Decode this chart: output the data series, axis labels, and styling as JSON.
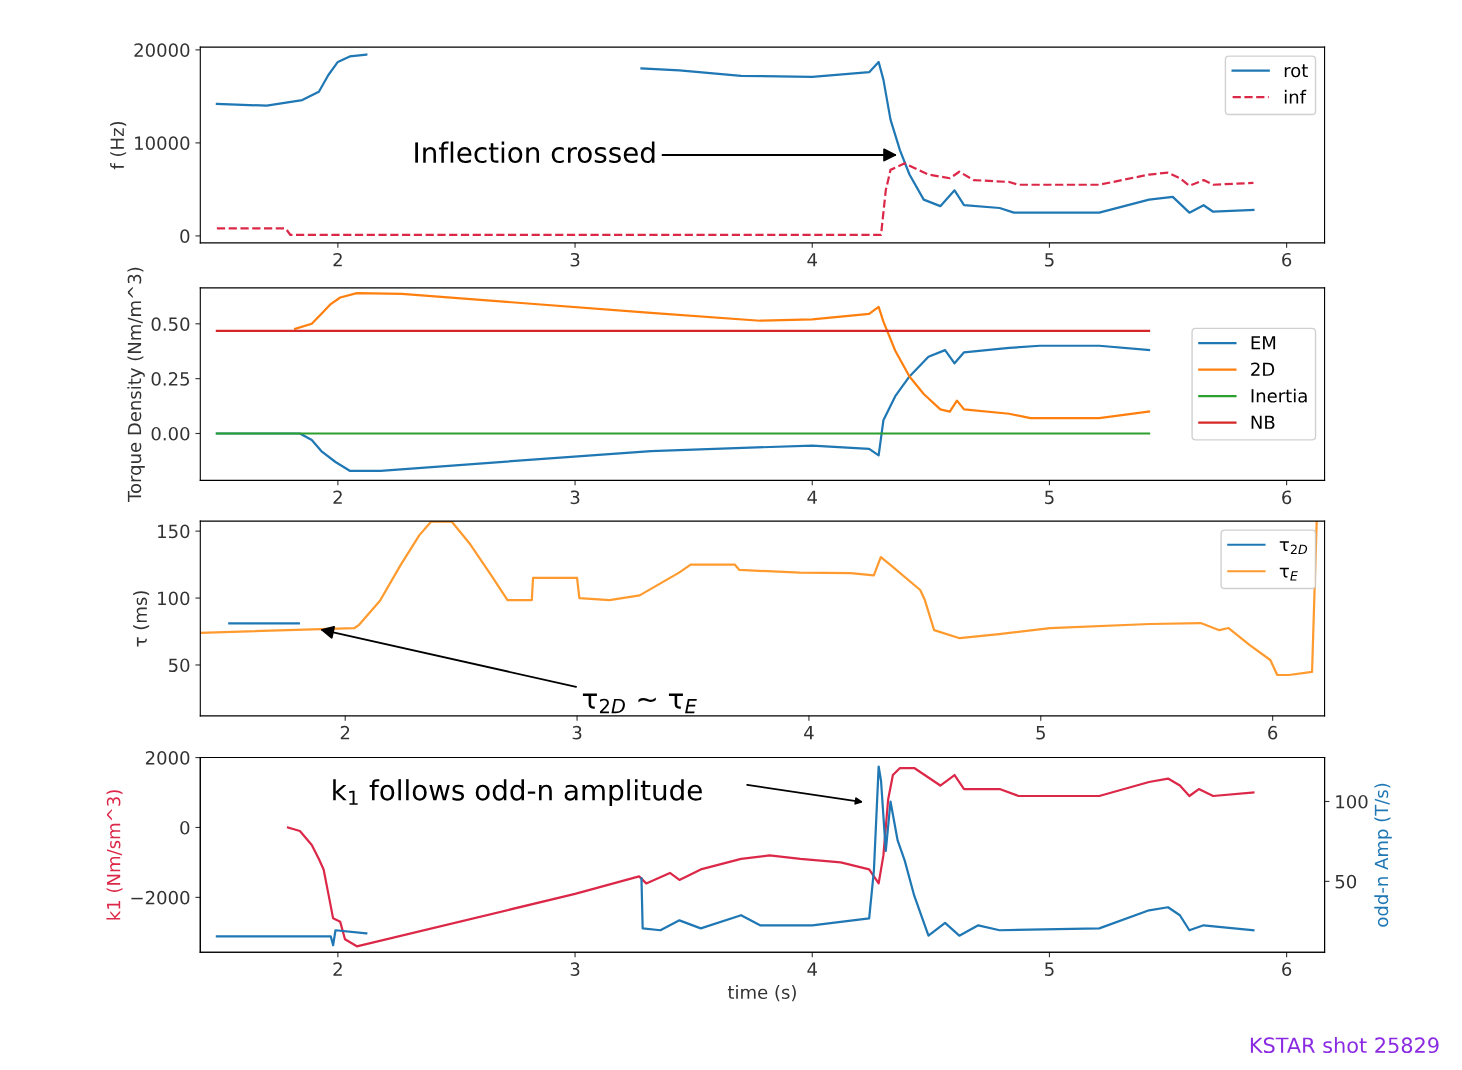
{
  "chart_data": [
    {
      "type": "line",
      "ylabel": "f (Hz)",
      "xlim": [
        1.42,
        6.16
      ],
      "ylim": [
        -750,
        20300
      ],
      "xticks": [
        2,
        3,
        4,
        5,
        6
      ],
      "yticks": [
        0,
        10000,
        20000
      ],
      "legend": "top right",
      "series": [
        {
          "name": "rot",
          "color": "#1f77b4",
          "line_style": "solid",
          "x": [
            1.49,
            1.7,
            1.85,
            1.92,
            1.96,
            2.0,
            2.05,
            2.12,
            2.2,
            3.28,
            3.44,
            3.7,
            4.0,
            4.24,
            4.28,
            4.3,
            4.33,
            4.37,
            4.41,
            4.47,
            4.54,
            4.6,
            4.64,
            4.79,
            4.85,
            5.21,
            5.42,
            5.52,
            5.59,
            5.65,
            5.69,
            5.86
          ],
          "values": [
            14200,
            14000,
            14600,
            15500,
            17300,
            18700,
            19300,
            19500,
            null,
            18000,
            17800,
            17200,
            17100,
            17600,
            18700,
            16800,
            12500,
            9200,
            6600,
            3900,
            3200,
            4900,
            3300,
            3000,
            2500,
            2500,
            3900,
            4200,
            2500,
            3300,
            2600,
            2800
          ]
        },
        {
          "name": "inf",
          "color": "#dc2848",
          "line_style": "dashed",
          "x": [
            1.49,
            1.78,
            1.8,
            4.29,
            4.31,
            4.33,
            4.39,
            4.49,
            4.58,
            4.62,
            4.68,
            4.83,
            4.87,
            5.21,
            5.42,
            5.5,
            5.55,
            5.59,
            5.65,
            5.69,
            5.86
          ],
          "values": [
            800,
            800,
            100,
            100,
            4900,
            7100,
            7800,
            6600,
            6200,
            6900,
            6000,
            5800,
            5500,
            5500,
            6600,
            6800,
            6200,
            5400,
            6000,
            5500,
            5700
          ]
        }
      ],
      "annotations": [
        {
          "text": "Inflection crossed",
          "x": 4.37,
          "y": 8700
        }
      ]
    },
    {
      "type": "line",
      "ylabel": "Torque Density (Nm/m^3)",
      "xlim": [
        1.42,
        6.16
      ],
      "ylim": [
        -0.214,
        0.664
      ],
      "xticks": [
        2,
        3,
        4,
        5,
        6
      ],
      "yticks": [
        {
          "value": 0,
          "label": "0.00"
        },
        {
          "value": 0.25,
          "label": "0.25"
        },
        {
          "value": 0.5,
          "label": "0.50"
        }
      ],
      "legend": "right",
      "series": [
        {
          "name": "EM",
          "color": "#1f77b4",
          "line_style": "solid",
          "x": [
            1.49,
            1.84,
            1.89,
            1.93,
            1.99,
            2.05,
            2.18,
            3.32,
            4.0,
            4.24,
            4.28,
            4.3,
            4.35,
            4.41,
            4.49,
            4.56,
            4.6,
            4.64,
            4.83,
            4.96,
            5.21,
            5.42
          ],
          "values": [
            0,
            0,
            -0.03,
            -0.08,
            -0.13,
            -0.17,
            -0.17,
            -0.08,
            -0.055,
            -0.07,
            -0.1,
            0.06,
            0.17,
            0.26,
            0.35,
            0.38,
            0.32,
            0.37,
            0.39,
            0.4,
            0.4,
            0.38
          ]
        },
        {
          "name": "2D",
          "color": "#ff7f0e",
          "line_style": "solid",
          "x": [
            1.82,
            1.89,
            1.93,
            1.97,
            2.01,
            2.08,
            2.27,
            3.32,
            3.78,
            4.0,
            4.24,
            4.28,
            4.3,
            4.35,
            4.41,
            4.47,
            4.54,
            4.58,
            4.61,
            4.64,
            4.83,
            4.92,
            5.21,
            5.42
          ],
          "values": [
            0.477,
            0.5,
            0.545,
            0.59,
            0.62,
            0.64,
            0.636,
            0.55,
            0.514,
            0.52,
            0.545,
            0.577,
            0.51,
            0.377,
            0.26,
            0.18,
            0.11,
            0.1,
            0.15,
            0.11,
            0.09,
            0.07,
            0.07,
            0.1
          ]
        },
        {
          "name": "Inertia",
          "color": "#2ca02c",
          "line_style": "solid",
          "x": [
            1.49,
            5.42
          ],
          "values": [
            0,
            0
          ]
        },
        {
          "name": "NB",
          "color": "#d62728",
          "line_style": "solid",
          "x": [
            1.49,
            5.42
          ],
          "values": [
            0.468,
            0.468
          ]
        }
      ]
    },
    {
      "type": "line",
      "ylabel": "τ (ms)",
      "xlim": [
        1.375,
        6.224
      ],
      "ylim": [
        12,
        157.5
      ],
      "xticks": [
        2,
        3,
        4,
        5,
        6
      ],
      "yticks": [
        50,
        100,
        150
      ],
      "legend": "top right",
      "series": [
        {
          "name": "τ$_{2D}$",
          "color": "#1f77b4",
          "line_style": "solid",
          "x": [
            1.5,
            1.7,
            1.8
          ],
          "values": [
            81,
            81,
            81
          ]
        },
        {
          "name": "τ$_{E}$",
          "color": "#ff9a2e",
          "line_style": "solid",
          "x": [
            1.375,
            2.04,
            2.06,
            2.15,
            2.24,
            2.32,
            2.37,
            2.46,
            2.54,
            2.63,
            2.7,
            2.805,
            2.81,
            3.0,
            3.01,
            3.14,
            3.27,
            3.44,
            3.49,
            3.68,
            3.7,
            3.96,
            4.18,
            4.28,
            4.31,
            4.35,
            4.48,
            4.5,
            4.54,
            4.65,
            4.82,
            5.04,
            5.47,
            5.69,
            5.77,
            5.81,
            5.9,
            5.99,
            6.02,
            6.07,
            6.17,
            6.19
          ],
          "values": [
            74,
            77.6,
            80,
            98,
            125,
            147,
            157,
            157,
            140,
            117,
            98.5,
            98.5,
            115,
            115,
            100,
            98.5,
            102,
            119,
            125,
            125,
            121,
            119,
            118.7,
            117,
            130.6,
            125,
            106,
            98.5,
            76,
            70,
            73,
            77.6,
            80.6,
            81.3,
            76,
            77.6,
            65,
            53.7,
            42.5,
            42.5,
            44.8,
            157
          ]
        }
      ],
      "annotations": [
        {
          "text": "τ$_{2D}$ ~ τ$_{E}$",
          "x": 1.88,
          "y": 77
        }
      ]
    },
    {
      "type": "line",
      "xlabel": "time (s)",
      "ylabel": "k1 (Nm/sm^3)",
      "y2label": "odd-n Amp (T/s)",
      "xlim": [
        1.42,
        6.16
      ],
      "ylim": [
        -3571,
        2000
      ],
      "xticks": [
        2,
        3,
        4,
        5,
        6
      ],
      "yticks": [
        {
          "value": -2000,
          "label": "−2000"
        },
        0,
        2000
      ],
      "y2lim": [
        5.6,
        127.5
      ],
      "y2ticks": [
        50,
        100
      ],
      "series": [
        {
          "color": "#dc2848",
          "line_style": "solid",
          "x": [
            1.79,
            1.84,
            1.89,
            1.92,
            1.94,
            1.96,
            1.98,
            2.01,
            2.03,
            2.08,
            3.0,
            3.27,
            3.3,
            3.4,
            3.44,
            3.53,
            3.7,
            3.82,
            3.95,
            4.12,
            4.24,
            4.28,
            4.3,
            4.32,
            4.34,
            4.37,
            4.43,
            4.54,
            4.6,
            4.64,
            4.79,
            4.87,
            5.21,
            5.42,
            5.5,
            5.55,
            5.59,
            5.63,
            5.69,
            5.86
          ],
          "values": [
            0,
            -100,
            -500,
            -900,
            -1200,
            -1900,
            -2600,
            -2700,
            -3200,
            -3400,
            -1900,
            -1400,
            -1600,
            -1300,
            -1500,
            -1200,
            -900,
            -800,
            -900,
            -1000,
            -1200,
            -1600,
            -800,
            800,
            1500,
            1700,
            1700,
            1200,
            1500,
            1100,
            1100,
            900,
            900,
            1300,
            1400,
            1200,
            900,
            1100,
            900,
            1000
          ]
        },
        {
          "color": "#1f77b4",
          "line_style": "solid",
          "axis": "y2",
          "x": [
            1.49,
            1.97,
            1.98,
            1.99,
            2.12,
            2.2,
            3.28,
            3.285,
            3.36,
            3.44,
            3.53,
            3.7,
            3.78,
            4.0,
            4.24,
            4.26,
            4.28,
            4.29,
            4.31,
            4.33,
            4.36,
            4.39,
            4.43,
            4.49,
            4.56,
            4.62,
            4.7,
            4.79,
            5.21,
            5.42,
            5.5,
            5.55,
            5.59,
            5.65,
            5.86
          ],
          "values": [
            15.6,
            15.6,
            10,
            19.4,
            17.5,
            null,
            51.9,
            20.6,
            19.4,
            25.6,
            20.6,
            28.8,
            22.5,
            22.5,
            26.9,
            56.9,
            121.9,
            113,
            69,
            100,
            75.6,
            63,
            41,
            16,
            24,
            16,
            22.5,
            19.4,
            20.6,
            31.9,
            33.8,
            28.8,
            19.4,
            22.5,
            19.4
          ]
        }
      ],
      "annotations": [
        "k$_{1}$ follows odd-n amplitude",
        "KSTAR shot 25829"
      ]
    }
  ]
}
